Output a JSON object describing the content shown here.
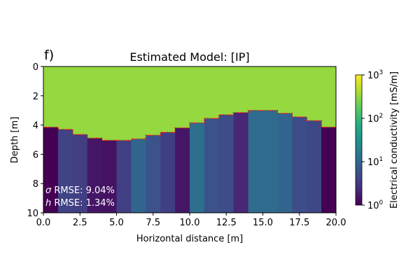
{
  "panel_label": "f)",
  "chart_data": {
    "type": "heatmap",
    "title": "Estimated Model: [IP]",
    "xlabel": "Horizontal distance [m]",
    "ylabel": "Depth [m]",
    "xlim": [
      0,
      20
    ],
    "ylim": [
      10,
      0
    ],
    "xticks": [
      "0.0",
      "2.5",
      "5.0",
      "7.5",
      "10.0",
      "12.5",
      "15.0",
      "17.5",
      "20.0"
    ],
    "yticks": [
      "0",
      "2",
      "4",
      "6",
      "8",
      "10"
    ],
    "colorbar": {
      "label": "Electrical conductivity [mS/m]",
      "scale": "log",
      "range": [
        1,
        1000
      ],
      "ticks": [
        {
          "value": 1,
          "label": "10^0"
        },
        {
          "value": 10,
          "label": "10^1"
        },
        {
          "value": 100,
          "label": "10^2"
        },
        {
          "value": 1000,
          "label": "10^3"
        }
      ],
      "colormap": "viridis"
    },
    "top_layer": {
      "conductivity_mS_per_m": 180,
      "color": "#95d840"
    },
    "columns_x": [
      0,
      1,
      2,
      3,
      4,
      5,
      6,
      7,
      8,
      9,
      10,
      11,
      12,
      13,
      14,
      15,
      16,
      17,
      18,
      19,
      20
    ],
    "interface_depth": [
      4.15,
      4.3,
      4.65,
      4.9,
      5.05,
      5.05,
      4.95,
      4.7,
      4.5,
      4.2,
      3.85,
      3.55,
      3.3,
      3.15,
      3.0,
      3.0,
      3.2,
      3.45,
      3.7,
      4.15
    ],
    "bottom_conductivity_mS_per_m": [
      1.0,
      4.0,
      3.5,
      1.5,
      1.4,
      3.6,
      9.5,
      5.6,
      3.6,
      1.5,
      12.0,
      5.6,
      5.0,
      2.1,
      11.0,
      11.0,
      9.5,
      5.0,
      4.5,
      1.0
    ],
    "interface_line": {
      "style": "dotted",
      "color": "#ff0000"
    },
    "annotations": [
      {
        "symbol": "σ",
        "text": " RMSE: 9.04%"
      },
      {
        "symbol": "h",
        "text": " RMSE: 1.34%"
      }
    ]
  }
}
